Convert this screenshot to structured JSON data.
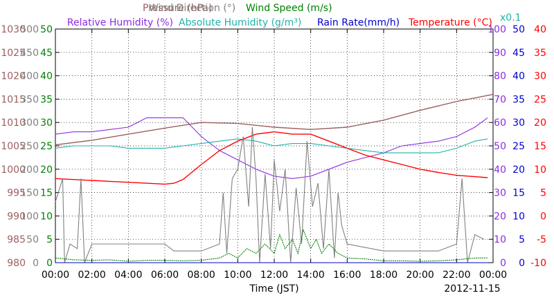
{
  "chart_data": {
    "type": "line",
    "date": "2012-11-15",
    "xlabel": "Time (JST)",
    "x_ticks": [
      "00:00",
      "02:00",
      "04:00",
      "06:00",
      "08:00",
      "10:00",
      "12:00",
      "14:00",
      "16:00",
      "18:00",
      "20:00",
      "22:00",
      "00:00"
    ],
    "legend": [
      {
        "label": "Pressure (hPa)",
        "color": "#9a5f5f"
      },
      {
        "label": "Wind Direction (°)",
        "color": "#808080"
      },
      {
        "label": "Wind Speed (m/s)",
        "color": "#008000"
      },
      {
        "label": "Relative Humidity (%)",
        "color": "#8a2be2"
      },
      {
        "label": "Absolute Humidity (g/m³)",
        "color": "#20b2aa"
      },
      {
        "label": "Rain Rate(mm/h)",
        "color": "#0000cd"
      },
      {
        "label": "Temperature (°C)",
        "color": "#ff0000"
      }
    ],
    "scale_note": "x0.1",
    "axes": {
      "pressure": {
        "ticks": [
          "1030",
          "1025",
          "1020",
          "1015",
          "1010",
          "1005",
          "1000",
          "995",
          "990",
          "985",
          "980"
        ],
        "color": "#9a5f5f",
        "ylim": [
          980,
          1030
        ]
      },
      "wind_direction": {
        "ticks": [
          "500",
          "450",
          "400",
          "350",
          "300",
          "250",
          "200",
          "150",
          "100",
          "50",
          "0"
        ],
        "color": "#808080",
        "ylim": [
          0,
          500
        ]
      },
      "wind_speed": {
        "ticks": [
          "50",
          "45",
          "40",
          "35",
          "30",
          "25",
          "20",
          "15",
          "10",
          "5",
          "0"
        ],
        "color": "#008000",
        "ylim": [
          0,
          50
        ]
      },
      "relative_humidity": {
        "ticks": [
          "100",
          "90",
          "80",
          "70",
          "60",
          "50",
          "40",
          "30",
          "20",
          "10",
          "0"
        ],
        "color": "#8a2be2",
        "ylim": [
          0,
          100
        ]
      },
      "rain_rate": {
        "ticks": [
          "50",
          "45",
          "40",
          "35",
          "30",
          "25",
          "20",
          "15",
          "10",
          "5",
          "0"
        ],
        "color": "#0000cd",
        "ylim": [
          0,
          50
        ]
      },
      "temperature": {
        "ticks": [
          "40",
          "35",
          "30",
          "25",
          "20",
          "15",
          "10",
          "5",
          "0",
          "-5",
          "-10"
        ],
        "color": "#ff0000",
        "ylim": [
          -10,
          40
        ]
      }
    },
    "series": [
      {
        "name": "Pressure (hPa)",
        "axis": "pressure",
        "color": "#9a5f5f",
        "hours": [
          0,
          2,
          4,
          6,
          8,
          10,
          12,
          14,
          16,
          18,
          20,
          22,
          24
        ],
        "values": [
          1005.2,
          1006.2,
          1007.5,
          1008.8,
          1010.0,
          1009.8,
          1009.0,
          1008.5,
          1009.0,
          1010.5,
          1012.6,
          1014.5,
          1016.0
        ]
      },
      {
        "name": "Relative Humidity (%)",
        "axis": "relative_humidity",
        "color": "#8a2be2",
        "hours": [
          0,
          1,
          2,
          3,
          4,
          5,
          6,
          7,
          8,
          9,
          10,
          11,
          12,
          13,
          14,
          15,
          16,
          17,
          18,
          19,
          20,
          21,
          22,
          23,
          23.7
        ],
        "values": [
          55,
          56,
          56,
          57,
          58,
          62,
          62,
          62,
          54,
          48,
          44,
          40,
          37,
          36,
          37,
          40,
          43,
          45,
          47,
          50,
          51,
          52,
          54,
          58,
          62
        ]
      },
      {
        "name": "Absolute Humidity (g/m³)",
        "axis": "relative_humidity",
        "color": "#20b2aa",
        "hours": [
          0,
          1,
          2,
          3,
          4,
          5,
          6,
          7,
          8,
          9,
          10,
          11,
          12,
          13,
          14,
          15,
          16,
          17,
          18,
          19,
          20,
          21,
          22,
          23,
          23.7
        ],
        "values": [
          49,
          50,
          50,
          50,
          49,
          49,
          49,
          50,
          51,
          52,
          53,
          52,
          50,
          51,
          51,
          50,
          49,
          48,
          47,
          47,
          47,
          47,
          49,
          52,
          53
        ]
      },
      {
        "name": "Temperature (°C)",
        "axis": "temperature",
        "color": "#ff0000",
        "hours": [
          0,
          1,
          2,
          3,
          4,
          5,
          6,
          6.5,
          7,
          8,
          9,
          10,
          11,
          12,
          13,
          14,
          15,
          16,
          17,
          18,
          19,
          20,
          21,
          22,
          23,
          23.7
        ],
        "values": [
          8,
          7.8,
          7.6,
          7.4,
          7.2,
          7.0,
          6.8,
          7.0,
          7.8,
          11,
          14,
          16,
          17.5,
          18,
          17.5,
          17.5,
          16,
          14.5,
          13,
          12,
          11,
          10,
          9.3,
          8.7,
          8.4,
          8.2
        ]
      },
      {
        "name": "Wind Direction (°)",
        "axis": "wind_direction",
        "color": "#808080",
        "hours": [
          0,
          0.4,
          0.5,
          0.8,
          1.2,
          1.4,
          1.6,
          2,
          4,
          6,
          6.5,
          8,
          9,
          9.2,
          9.4,
          9.7,
          10,
          10.3,
          10.6,
          10.8,
          11,
          11.2,
          11.5,
          11.8,
          12,
          12.3,
          12.6,
          12.9,
          13.2,
          13.5,
          13.8,
          14.1,
          14.4,
          14.7,
          15,
          15.3,
          15.5,
          15.7,
          16,
          18,
          20,
          21,
          22,
          22.3,
          22.6,
          23,
          23.5
        ],
        "values": [
          130,
          180,
          0,
          40,
          30,
          180,
          0,
          40,
          40,
          40,
          25,
          25,
          40,
          150,
          20,
          180,
          200,
          270,
          120,
          290,
          180,
          0,
          190,
          30,
          220,
          110,
          200,
          0,
          160,
          40,
          260,
          120,
          170,
          30,
          200,
          10,
          150,
          80,
          40,
          25,
          25,
          25,
          40,
          180,
          0,
          60,
          50
        ]
      },
      {
        "name": "Wind Speed (m/s)",
        "axis": "wind_speed",
        "color": "#008000",
        "hours": [
          0,
          1,
          2,
          3,
          4,
          5,
          6,
          7,
          8,
          9,
          9.5,
          10,
          10.5,
          11,
          11.5,
          12,
          12.3,
          12.6,
          13,
          13.3,
          13.6,
          14,
          14.3,
          14.6,
          15,
          15.5,
          16,
          17,
          18,
          19,
          20,
          21,
          22,
          23,
          23.7
        ],
        "values": [
          1,
          0.6,
          0.5,
          0.6,
          0.3,
          0.5,
          0.5,
          0.4,
          0.5,
          1,
          2,
          1,
          3,
          2,
          4,
          2,
          6,
          3,
          5,
          2,
          7,
          3,
          5,
          2,
          4,
          2,
          1,
          0.8,
          0.4,
          0.4,
          0.3,
          0.4,
          0.6,
          1,
          1
        ]
      },
      {
        "name": "Rain Rate(mm/h)",
        "axis": "rain_rate",
        "color": "#0000cd",
        "hours": [
          0,
          23.7
        ],
        "values": [
          0,
          0
        ]
      }
    ]
  }
}
